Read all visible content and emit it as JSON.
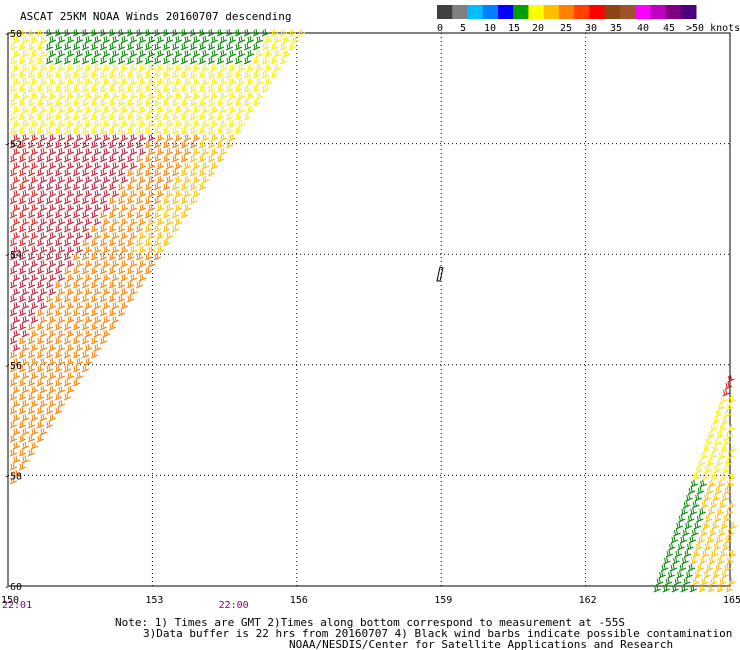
{
  "title": "ASCAT 25KM NOAA Winds 20160707 descending",
  "legend": {
    "colors": [
      "#404040",
      "#808080",
      "#00bfff",
      "#0080ff",
      "#0000ff",
      "#00a000",
      "#ffff00",
      "#ffbf00",
      "#ff8000",
      "#ff4000",
      "#ff0000",
      "#8b4513",
      "#a0522d",
      "#ff00ff",
      "#c000c0",
      "#800080",
      "#4b0082"
    ],
    "labels": [
      "0",
      "5",
      "10",
      "15",
      "20",
      "25",
      "30",
      "35",
      "40",
      "45",
      ">50 knots"
    ]
  },
  "map": {
    "lon_range": [
      150,
      165
    ],
    "lat_range": [
      -60,
      -50
    ],
    "lon_ticks": [
      "150",
      "153",
      "156",
      "159",
      "162",
      "165"
    ],
    "lat_ticks": [
      "-50",
      "-52",
      "-54",
      "-56",
      "-58",
      "-60"
    ],
    "time_labels": [
      {
        "text": "22:01",
        "lon": 150.0
      },
      {
        "text": "22:00",
        "lon": 154.5
      }
    ]
  },
  "notes": {
    "line1": "Note: 1) Times are GMT 2)Times along bottom correspond to measurement at -55S",
    "line2": "3)Data buffer is 22 hrs from 20160707 4) Black wind barbs indicate possible contamination",
    "line3": "NOAA/NESDIS/Center for Satellite Applications and Research"
  }
}
